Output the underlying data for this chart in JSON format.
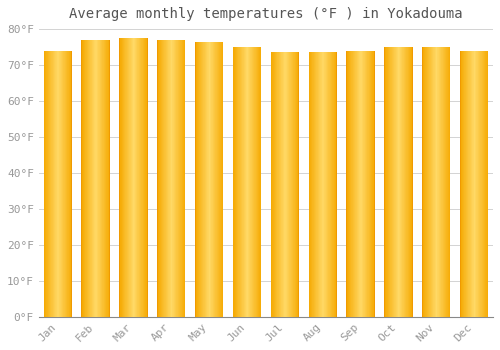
{
  "title": "Average monthly temperatures (°F ) in Yokadouma",
  "months": [
    "Jan",
    "Feb",
    "Mar",
    "Apr",
    "May",
    "Jun",
    "Jul",
    "Aug",
    "Sep",
    "Oct",
    "Nov",
    "Dec"
  ],
  "values": [
    74,
    77,
    77.5,
    77,
    76.5,
    75,
    73.5,
    73.5,
    74,
    75,
    75,
    74
  ],
  "ylim": [
    0,
    80
  ],
  "yticks": [
    0,
    10,
    20,
    30,
    40,
    50,
    60,
    70,
    80
  ],
  "bar_color_center": "#FFD966",
  "bar_color_edge": "#F5A800",
  "background_color": "#FFFFFF",
  "plot_bg_color": "#FFFFFF",
  "grid_color": "#CCCCCC",
  "text_color": "#999999",
  "title_color": "#555555",
  "title_fontsize": 10,
  "tick_fontsize": 8
}
